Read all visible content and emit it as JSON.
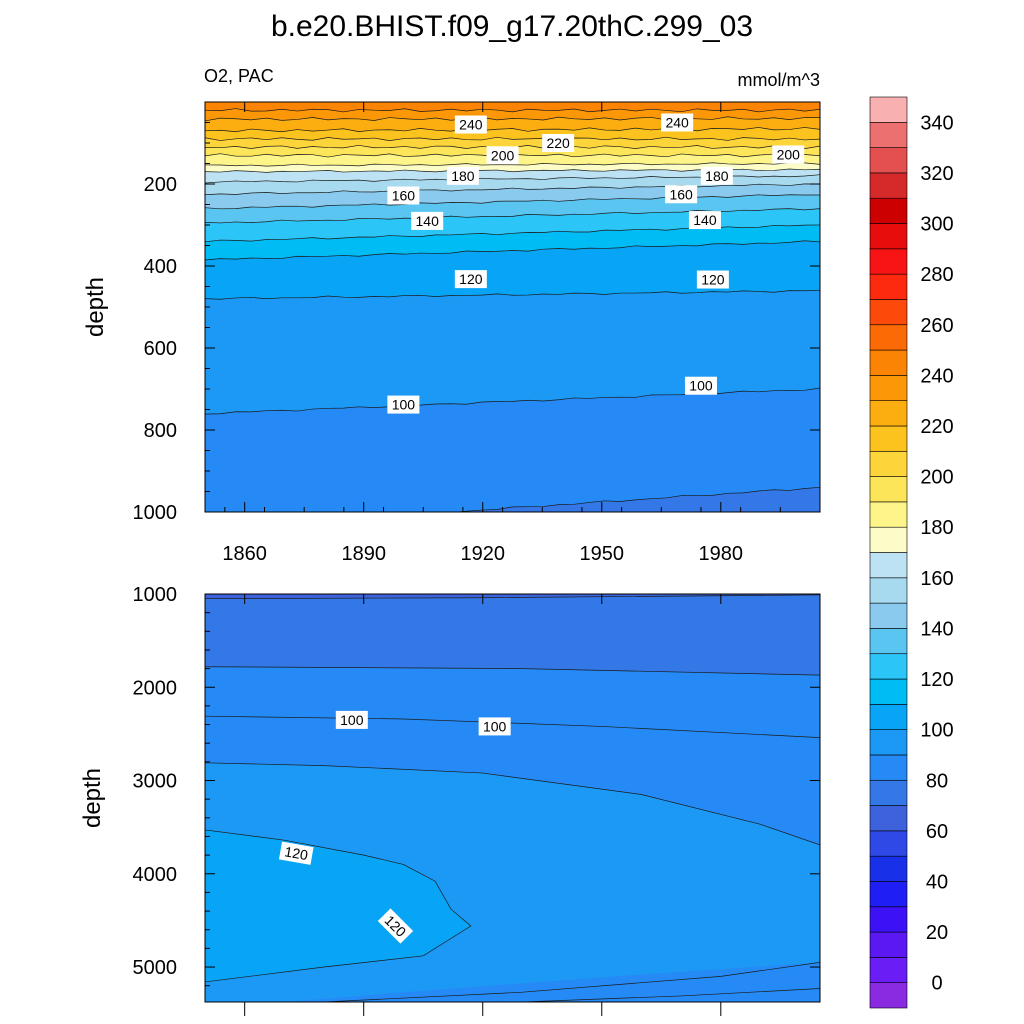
{
  "title": "b.e20.BHIST.f09_g17.20thC.299_03",
  "colors": {
    "bg": "#ffffff",
    "frame": "#000000",
    "contour": "#1a1a1a"
  },
  "colorbar": {
    "levels": [
      0,
      10,
      20,
      30,
      40,
      50,
      60,
      70,
      80,
      90,
      100,
      110,
      120,
      130,
      140,
      150,
      160,
      170,
      180,
      190,
      200,
      210,
      220,
      230,
      240,
      250,
      260,
      270,
      280,
      290,
      300,
      310,
      320,
      330,
      340,
      350
    ],
    "colors": [
      "#8a2be2",
      "#6a1ef5",
      "#5b18f2",
      "#3c11f5",
      "#1f1ff5",
      "#1830e8",
      "#2e49e6",
      "#3d62dc",
      "#3477e6",
      "#258af5",
      "#1c99f5",
      "#08a4f5",
      "#00bcf5",
      "#2cc5f7",
      "#5ac5f0",
      "#8acaef",
      "#a7d9ef",
      "#bde2f3",
      "#fcfcc8",
      "#fdf48a",
      "#fde55a",
      "#fdd53a",
      "#fcc21e",
      "#fcad10",
      "#fc9808",
      "#fc8405",
      "#fc6a06",
      "#fb4a0a",
      "#fe2a10",
      "#f81414",
      "#e80d0d",
      "#cc0000",
      "#d62a2a",
      "#e45050",
      "#ec7070",
      "#f8b0b0"
    ],
    "tick_labels": [
      "0",
      "20",
      "40",
      "60",
      "80",
      "100",
      "120",
      "140",
      "160",
      "180",
      "200",
      "220",
      "240",
      "260",
      "280",
      "300",
      "320",
      "340"
    ]
  },
  "chart_data": [
    {
      "type": "heatmap",
      "panel": "upper",
      "left_label": "O2, PAC",
      "right_label": "mmol/m^3",
      "ylabel": "depth",
      "xlabel": "",
      "xlim": [
        1850,
        2005
      ],
      "ylim": [
        0,
        1000
      ],
      "y_reversed": true,
      "xticks": [
        "1860",
        "1890",
        "1920",
        "1950",
        "1980"
      ],
      "yticks": [
        "200",
        "400",
        "600",
        "800",
        "1000"
      ],
      "contour_levels": [
        100,
        110,
        120,
        130,
        140,
        150,
        160,
        170,
        180,
        190,
        200,
        210,
        220,
        230,
        240,
        250
      ],
      "contour_depths": {
        "levels": [
          250,
          240,
          230,
          220,
          210,
          200,
          190,
          180,
          170,
          160,
          150,
          140,
          130,
          120,
          110,
          100,
          90
        ],
        "start_depth": [
          20,
          42,
          70,
          90,
          110,
          130,
          155,
          170,
          195,
          225,
          260,
          295,
          340,
          385,
          480,
          760,
          1040
        ],
        "end_depth": [
          20,
          40,
          65,
          90,
          110,
          130,
          150,
          165,
          180,
          200,
          225,
          260,
          300,
          340,
          460,
          700,
          940
        ]
      },
      "contour_labels": [
        {
          "value": "240",
          "x": 1917,
          "depth": 55
        },
        {
          "value": "240",
          "x": 1969,
          "depth": 50
        },
        {
          "value": "220",
          "x": 1939,
          "depth": 100
        },
        {
          "value": "200",
          "x": 1925,
          "depth": 130
        },
        {
          "value": "200",
          "x": 1997,
          "depth": 128
        },
        {
          "value": "180",
          "x": 1915,
          "depth": 180
        },
        {
          "value": "180",
          "x": 1979,
          "depth": 180
        },
        {
          "value": "160",
          "x": 1900,
          "depth": 228
        },
        {
          "value": "160",
          "x": 1970,
          "depth": 225
        },
        {
          "value": "140",
          "x": 1906,
          "depth": 290
        },
        {
          "value": "140",
          "x": 1976,
          "depth": 288
        },
        {
          "value": "120",
          "x": 1917,
          "depth": 432
        },
        {
          "value": "120",
          "x": 1978,
          "depth": 433
        },
        {
          "value": "100",
          "x": 1900,
          "depth": 738
        },
        {
          "value": "100",
          "x": 1975,
          "depth": 692
        }
      ]
    },
    {
      "type": "heatmap",
      "panel": "lower",
      "ylabel": "depth",
      "xlim": [
        1850,
        2005
      ],
      "ylim": [
        1000,
        5375
      ],
      "y_reversed": true,
      "yticks": [
        "1000",
        "2000",
        "3000",
        "4000",
        "5000"
      ],
      "contour_levels": [
        90,
        100,
        110,
        120
      ],
      "regions": [
        {
          "value": 90,
          "description": "shallow band 1000-1800"
        },
        {
          "value": 100,
          "description": "band 1800-2800"
        },
        {
          "value": 110,
          "description": "interior 2800-5200"
        },
        {
          "value": 120,
          "description": "western deep maximum ~3500-4600"
        }
      ],
      "contour_labels": [
        {
          "value": "100",
          "x": 1887,
          "depth": 2350
        },
        {
          "value": "100",
          "x": 1923,
          "depth": 2420
        },
        {
          "value": "120",
          "x": 1873,
          "depth": 3780
        },
        {
          "value": "120",
          "x": 1898,
          "depth": 4560
        }
      ]
    }
  ]
}
